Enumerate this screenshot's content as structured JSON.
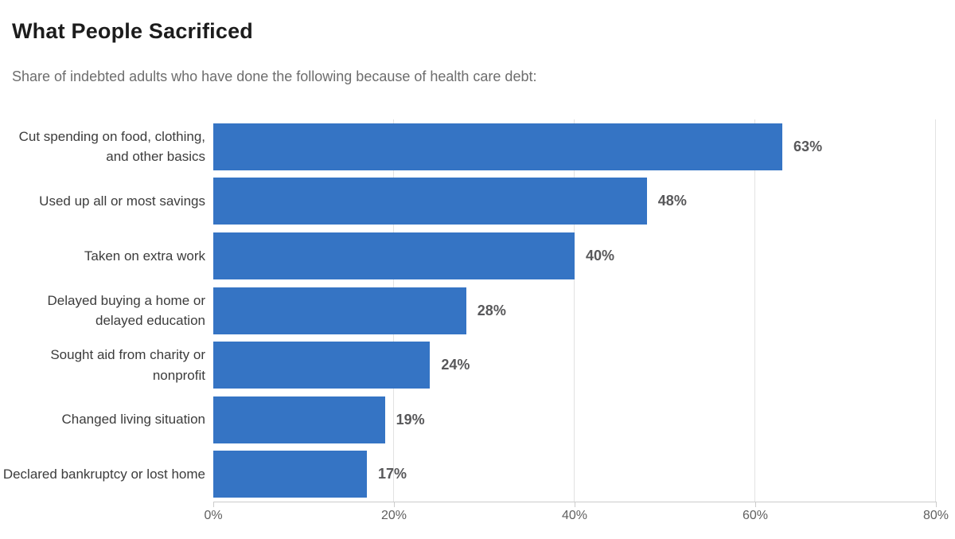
{
  "title": "What People Sacrificed",
  "subtitle": "Share of indebted adults who have done the following because of health care debt:",
  "chart_data": {
    "type": "bar",
    "orientation": "horizontal",
    "categories": [
      "Cut spending on food, clothing, and other basics",
      "Used up all or most savings",
      "Taken on extra work",
      "Delayed buying a home or delayed education",
      "Sought aid from charity or nonprofit",
      "Changed living situation",
      "Declared bankruptcy or lost home"
    ],
    "values": [
      63,
      48,
      40,
      28,
      24,
      19,
      17
    ],
    "value_labels": [
      "63%",
      "48%",
      "40%",
      "28%",
      "24%",
      "19%",
      "17%"
    ],
    "xlabel": "",
    "ylabel": "",
    "xlim": [
      0,
      80
    ],
    "x_ticks": [
      0,
      20,
      40,
      60,
      80
    ],
    "x_tick_labels": [
      "0%",
      "20%",
      "40%",
      "60%",
      "80%"
    ],
    "grid": true,
    "legend": false,
    "bar_color": "#3574c4"
  }
}
